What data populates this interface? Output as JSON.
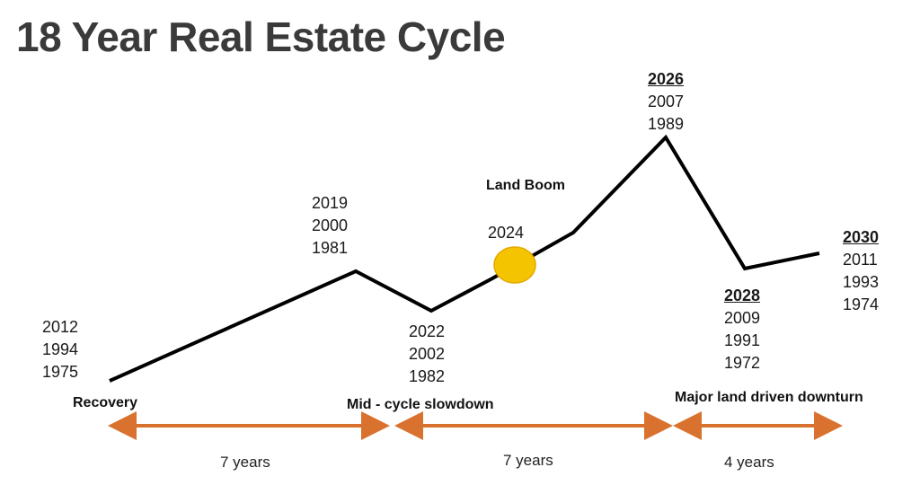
{
  "title": "18 Year Real Estate Cycle",
  "colors": {
    "line": "#000000",
    "marker": "#f5c400",
    "arrow": "#d9722e",
    "title": "#3a3a3a"
  },
  "points": {
    "start": {
      "years": [
        "2012",
        "1994",
        "1975"
      ]
    },
    "peak1": {
      "years": [
        "2019",
        "2000",
        "1981"
      ]
    },
    "trough1": {
      "years": [
        "2022",
        "2002",
        "1982"
      ]
    },
    "marker": {
      "years": [
        "2024"
      ]
    },
    "peak2": {
      "years": [
        "2026",
        "2007",
        "1989"
      ]
    },
    "trough2": {
      "years": [
        "2028",
        "2009",
        "1991",
        "1972"
      ]
    },
    "end": {
      "years": [
        "2030",
        "2011",
        "1993",
        "1974"
      ]
    }
  },
  "phases": {
    "recovery": "Recovery",
    "slowdown": "Mid - cycle slowdown",
    "boom": "Land Boom",
    "downturn": "Major land driven downturn"
  },
  "durations": {
    "first": "7 years",
    "second": "7 years",
    "third": "4 years"
  }
}
